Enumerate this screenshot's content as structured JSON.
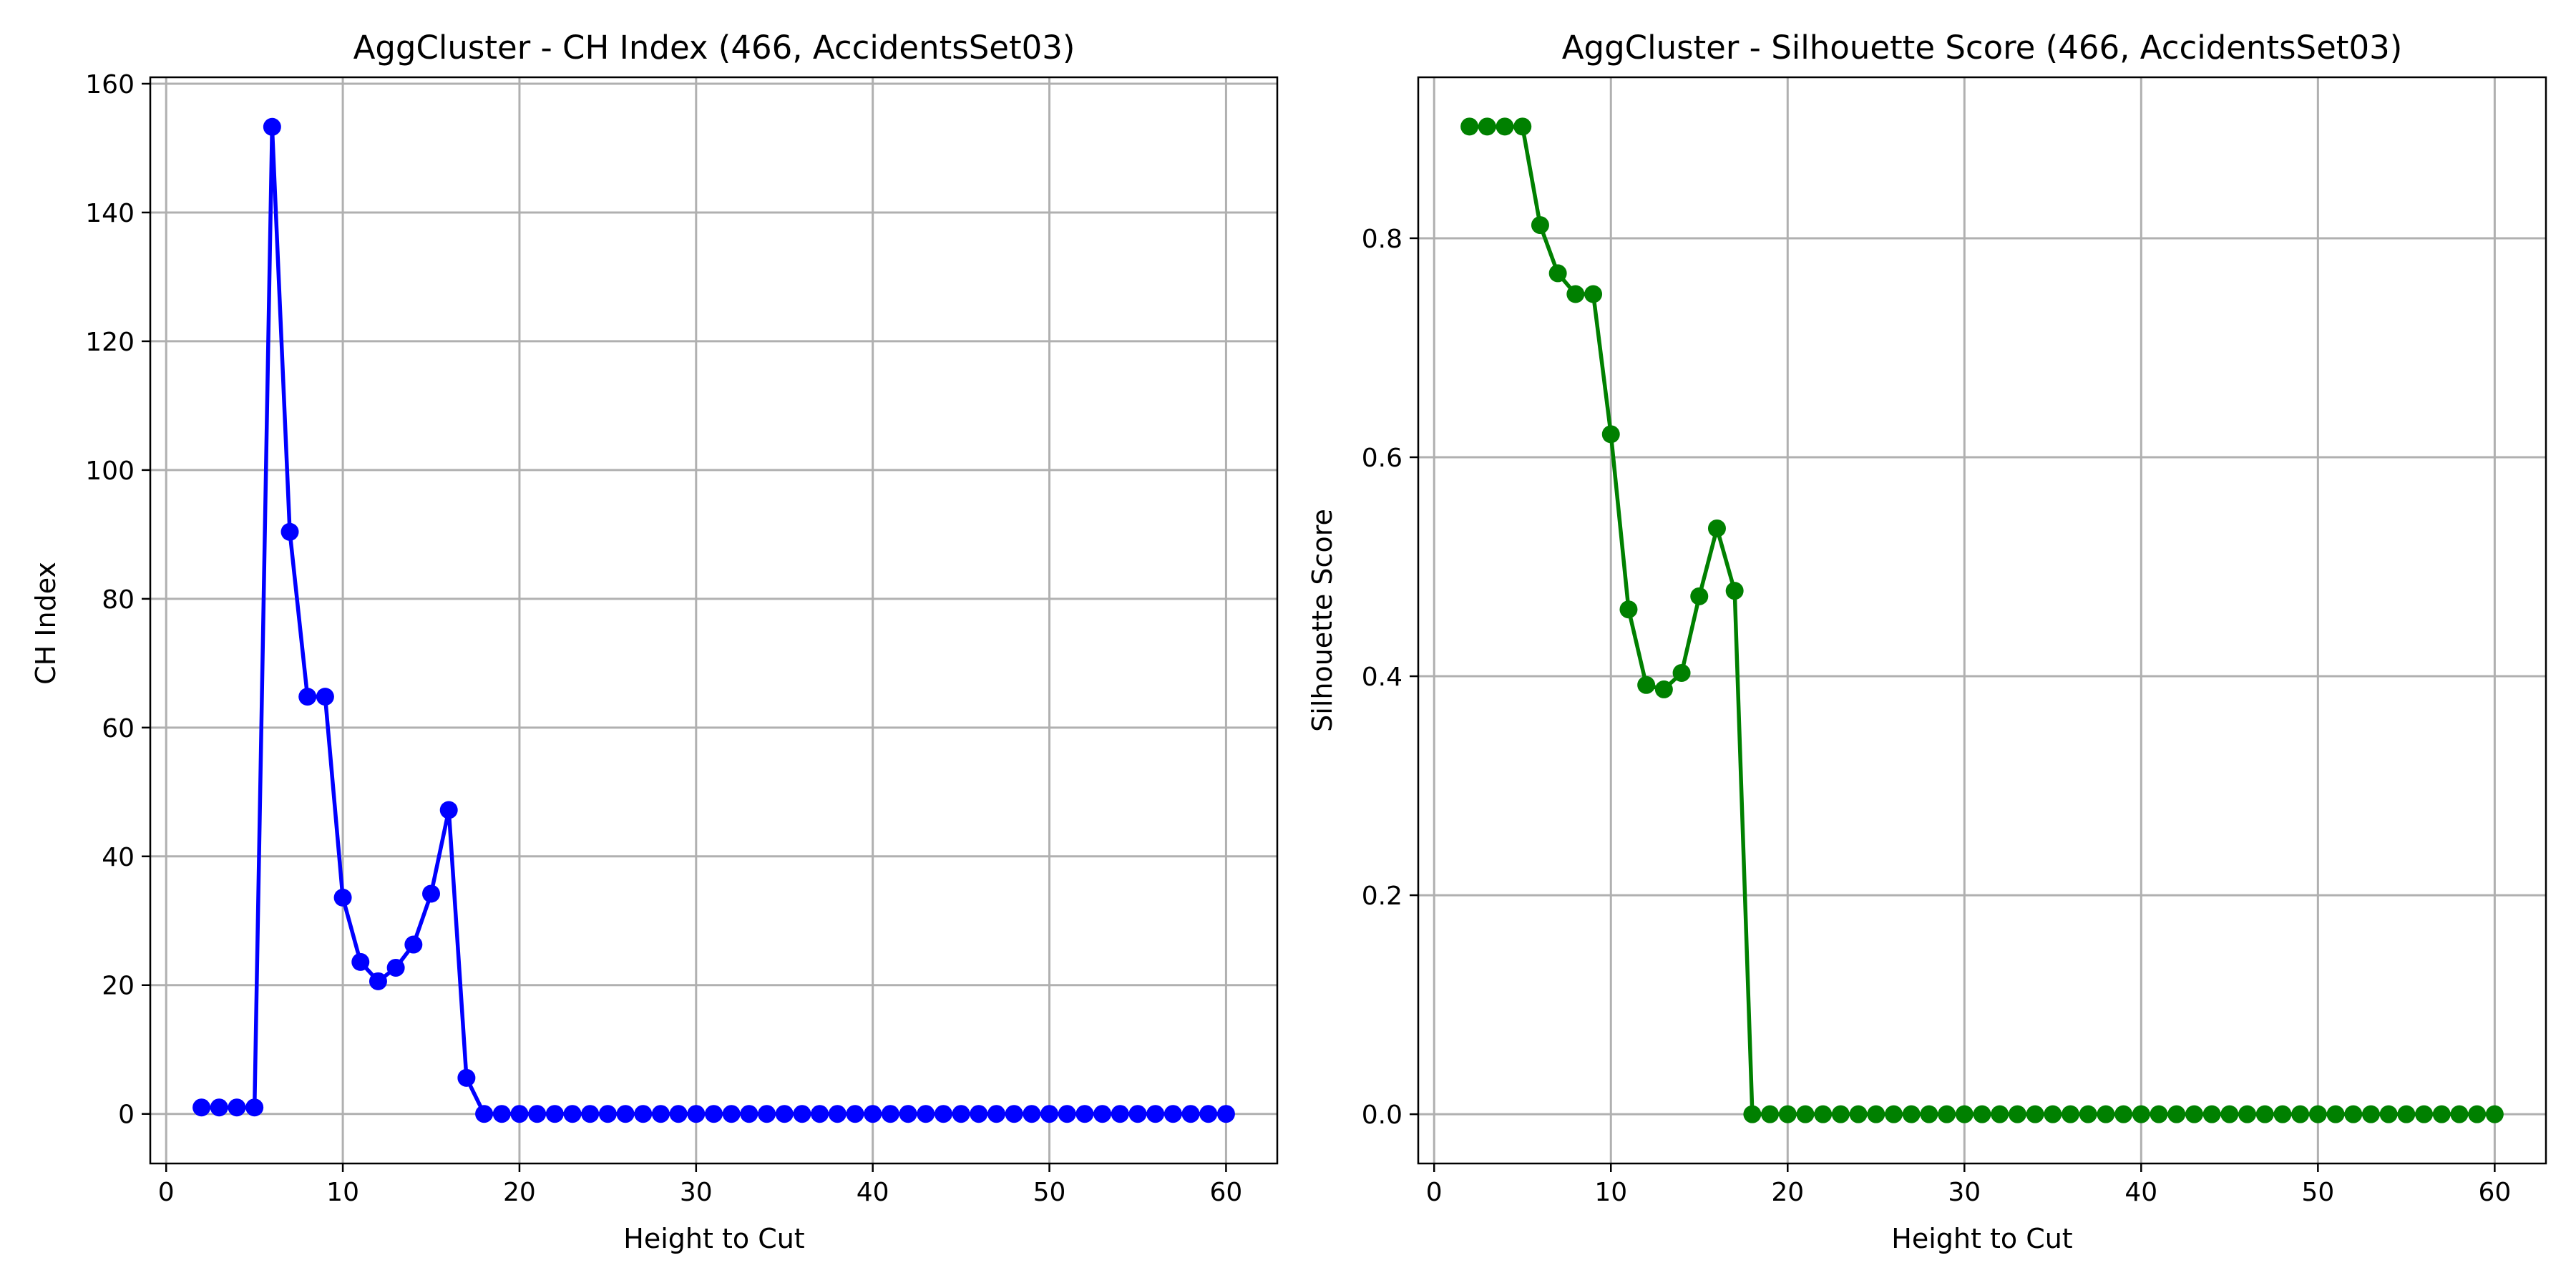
{
  "chart_data": [
    {
      "type": "line",
      "title": "AggCluster - CH Index (466, AccidentsSet03)",
      "xlabel": "Height to Cut",
      "ylabel": "CH Index",
      "xlim": [
        -0.9,
        62.9
      ],
      "ylim": [
        -7.7,
        161.0
      ],
      "xticks": [
        0,
        10,
        20,
        30,
        40,
        50,
        60
      ],
      "xtick_labels": [
        "0",
        "10",
        "20",
        "30",
        "40",
        "50",
        "60"
      ],
      "yticks": [
        0,
        20,
        40,
        60,
        80,
        100,
        120,
        140,
        160
      ],
      "ytick_labels": [
        "0",
        "20",
        "40",
        "60",
        "80",
        "100",
        "120",
        "140",
        "160"
      ],
      "grid": true,
      "marker": "circle",
      "series": [
        {
          "color": "#0000ff",
          "x": [
            2,
            3,
            4,
            5,
            6,
            7,
            8,
            9,
            10,
            11,
            12,
            13,
            14,
            15,
            16,
            17,
            18,
            19,
            20,
            21,
            22,
            23,
            24,
            25,
            26,
            27,
            28,
            29,
            30,
            31,
            32,
            33,
            34,
            35,
            36,
            37,
            38,
            39,
            40,
            41,
            42,
            43,
            44,
            45,
            46,
            47,
            48,
            49,
            50,
            51,
            52,
            53,
            54,
            55,
            56,
            57,
            58,
            59,
            60
          ],
          "y": [
            1.0,
            1.0,
            1.0,
            1.0,
            153.3,
            90.4,
            64.8,
            64.8,
            33.6,
            23.6,
            20.6,
            22.7,
            26.3,
            34.2,
            47.2,
            5.6,
            0,
            0,
            0,
            0,
            0,
            0,
            0,
            0,
            0,
            0,
            0,
            0,
            0,
            0,
            0,
            0,
            0,
            0,
            0,
            0,
            0,
            0,
            0,
            0,
            0,
            0,
            0,
            0,
            0,
            0,
            0,
            0,
            0,
            0,
            0,
            0,
            0,
            0,
            0,
            0,
            0,
            0,
            0
          ]
        }
      ]
    },
    {
      "type": "line",
      "title": "AggCluster - Silhouette Score (466, AccidentsSet03)",
      "xlabel": "Height to Cut",
      "ylabel": "Silhouette Score",
      "xlim": [
        -0.9,
        62.9
      ],
      "ylim": [
        -0.045,
        0.947
      ],
      "xticks": [
        0,
        10,
        20,
        30,
        40,
        50,
        60
      ],
      "xtick_labels": [
        "0",
        "10",
        "20",
        "30",
        "40",
        "50",
        "60"
      ],
      "yticks": [
        0.0,
        0.2,
        0.4,
        0.6,
        0.8
      ],
      "ytick_labels": [
        "0.0",
        "0.2",
        "0.4",
        "0.6",
        "0.8"
      ],
      "grid": true,
      "marker": "circle",
      "series": [
        {
          "color": "#008000",
          "x": [
            2,
            3,
            4,
            5,
            6,
            7,
            8,
            9,
            10,
            11,
            12,
            13,
            14,
            15,
            16,
            17,
            18,
            19,
            20,
            21,
            22,
            23,
            24,
            25,
            26,
            27,
            28,
            29,
            30,
            31,
            32,
            33,
            34,
            35,
            36,
            37,
            38,
            39,
            40,
            41,
            42,
            43,
            44,
            45,
            46,
            47,
            48,
            49,
            50,
            51,
            52,
            53,
            54,
            55,
            56,
            57,
            58,
            59,
            60
          ],
          "y": [
            0.902,
            0.902,
            0.902,
            0.902,
            0.812,
            0.768,
            0.749,
            0.749,
            0.621,
            0.461,
            0.392,
            0.388,
            0.403,
            0.473,
            0.535,
            0.478,
            0,
            0,
            0,
            0,
            0,
            0,
            0,
            0,
            0,
            0,
            0,
            0,
            0,
            0,
            0,
            0,
            0,
            0,
            0,
            0,
            0,
            0,
            0,
            0,
            0,
            0,
            0,
            0,
            0,
            0,
            0,
            0,
            0,
            0,
            0,
            0,
            0,
            0,
            0,
            0,
            0,
            0,
            0
          ]
        }
      ]
    }
  ]
}
